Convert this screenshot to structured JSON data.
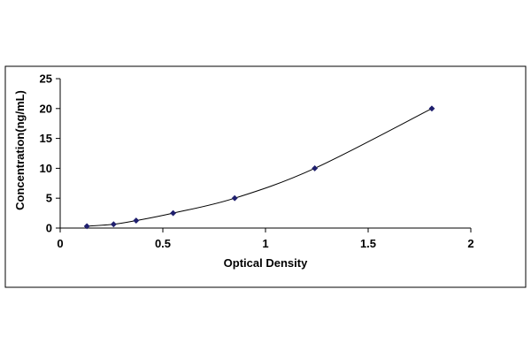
{
  "chart_data": {
    "type": "scatter",
    "title": "",
    "xlabel": "Optical Density",
    "ylabel": "Concentration(ng/mL)",
    "xlim": [
      0,
      2
    ],
    "ylim": [
      0,
      25
    ],
    "xticks": [
      0,
      0.5,
      1,
      1.5,
      2
    ],
    "xtick_labels": [
      "0",
      "0.5",
      "1",
      "1.5",
      "2"
    ],
    "yticks": [
      0,
      5,
      10,
      15,
      20,
      25
    ],
    "ytick_labels": [
      "0",
      "5",
      "10",
      "15",
      "20",
      "25"
    ],
    "grid": false,
    "legend": "none",
    "series": [
      {
        "marker": "diamond",
        "color": "#1f1f6e",
        "line": "smooth",
        "x": [
          0.13,
          0.26,
          0.37,
          0.55,
          0.85,
          1.24,
          1.81
        ],
        "y": [
          0.31,
          0.63,
          1.25,
          2.5,
          5,
          10,
          20
        ]
      }
    ]
  }
}
